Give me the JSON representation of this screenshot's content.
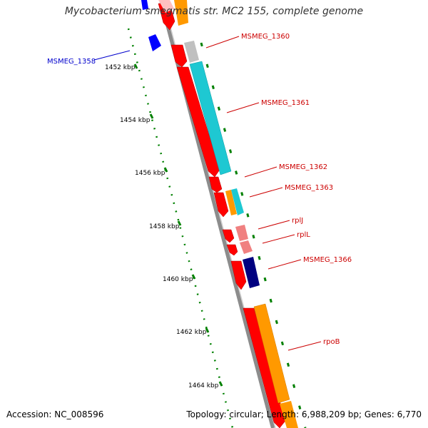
{
  "title": "Mycobacterium smegmatis str. MC2 155, complete genome",
  "footer": {
    "accession": "Accession: NC_008596",
    "summary": "Topology: circular; Length: 6,988,209 bp; Genes: 6,770"
  },
  "ticks": [
    "1452 kbp",
    "1454 kbp",
    "1456 kbp",
    "1458 kbp",
    "1460 kbp",
    "1462 kbp",
    "1464 kbp"
  ],
  "gene_labels": [
    "MSMEG_1358",
    "MSMEG_1360",
    "MSMEG_1361",
    "MSMEG_1362",
    "MSMEG_1363",
    "rplJ",
    "rplL",
    "MSMEG_1366",
    "rpoB"
  ],
  "colors": {
    "backbone": "#8c8c8c",
    "gene_red": "#ff0000",
    "cds_cyan": "#1ec8d2",
    "cds_orange": "#ff9900",
    "cds_navy": "#000080",
    "cds_blue": "#0000ff",
    "cds_pink": "#f08080",
    "cds_gray": "#c0c0c0",
    "ticks_green": "#008000",
    "label_red": "#cc0000",
    "label_blue": "#0000cc"
  }
}
